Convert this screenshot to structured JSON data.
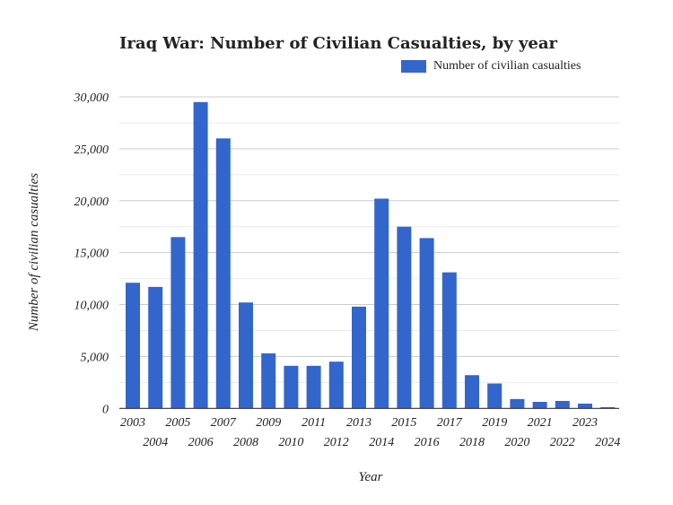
{
  "chart_data": {
    "type": "bar",
    "title": "Iraq War: Number of Civilian Casualties, by year",
    "xlabel": "Year",
    "ylabel": "Number of civilian casualties",
    "ylim": [
      0,
      30000
    ],
    "yticks": [
      "0",
      "5,000",
      "10,000",
      "15,000",
      "20,000",
      "25,000",
      "30,000"
    ],
    "grid": true,
    "legend_position": "top-right",
    "color": "#3366cc",
    "categories": [
      "2003",
      "2004",
      "2005",
      "2006",
      "2007",
      "2008",
      "2009",
      "2010",
      "2011",
      "2012",
      "2013",
      "2014",
      "2015",
      "2016",
      "2017",
      "2018",
      "2019",
      "2020",
      "2021",
      "2022",
      "2023",
      "2024"
    ],
    "series": [
      {
        "name": "Number of civilian casualties",
        "values": [
          12100,
          11700,
          16500,
          29500,
          26000,
          10200,
          5300,
          4100,
          4100,
          4500,
          9800,
          20200,
          17500,
          16400,
          13100,
          3200,
          2400,
          900,
          630,
          720,
          460,
          120
        ]
      }
    ]
  }
}
